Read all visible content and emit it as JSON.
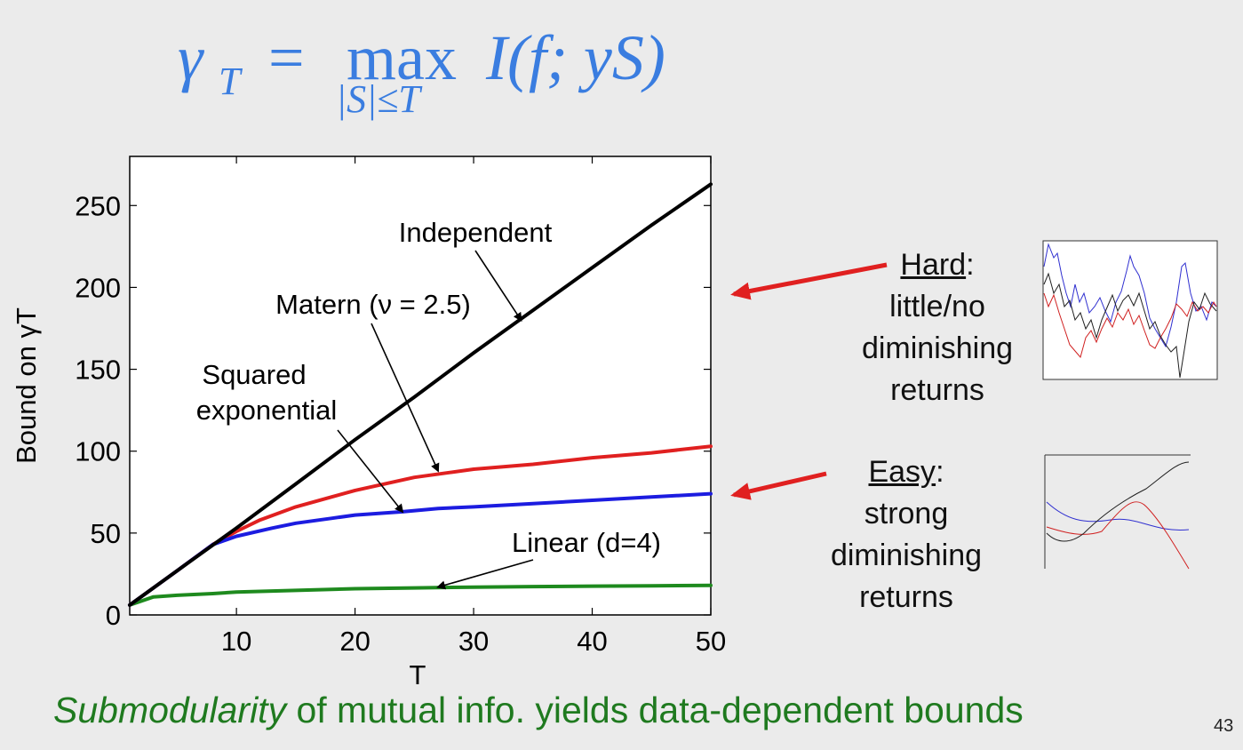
{
  "formula": {
    "gamma": "γ",
    "gamma_sub": "T",
    "equals": "=",
    "max": "max",
    "max_sub": "|S|≤T",
    "expression": "I(f; yS)"
  },
  "chart_data": {
    "type": "line",
    "xlabel": "T",
    "ylabel": "Bound on γT",
    "xlim": [
      1,
      50
    ],
    "ylim": [
      0,
      280
    ],
    "xticks": [
      10,
      20,
      30,
      40,
      50
    ],
    "yticks": [
      0,
      50,
      100,
      150,
      200,
      250
    ],
    "grid": false,
    "series": [
      {
        "name": "Independent",
        "color": "#000000",
        "x": [
          1,
          5,
          10,
          15,
          20,
          25,
          30,
          35,
          40,
          45,
          50
        ],
        "y": [
          6,
          27,
          53,
          80,
          107,
          133,
          160,
          186,
          212,
          238,
          263
        ]
      },
      {
        "name": "Matern (ν = 2.5)",
        "color": "#e02020",
        "x": [
          1,
          5,
          8,
          10,
          12,
          15,
          18,
          20,
          25,
          28,
          30,
          35,
          40,
          45,
          50
        ],
        "y": [
          6,
          27,
          43,
          51,
          58,
          66,
          72,
          76,
          84,
          87,
          89,
          92,
          96,
          99,
          103
        ]
      },
      {
        "name": "Squared exponential",
        "color": "#1c1ce0",
        "x": [
          1,
          5,
          8,
          10,
          13,
          15,
          18,
          20,
          24,
          27,
          30,
          35,
          40,
          45,
          50
        ],
        "y": [
          6,
          27,
          43,
          48,
          53,
          56,
          59,
          61,
          63,
          65,
          66,
          68,
          70,
          72,
          74
        ]
      },
      {
        "name": "Linear (d=4)",
        "color": "#1e8a1e",
        "x": [
          1,
          3,
          5,
          8,
          10,
          15,
          20,
          25,
          30,
          35,
          40,
          45,
          50
        ],
        "y": [
          6,
          11,
          12,
          13,
          14,
          15,
          16,
          16.5,
          17,
          17.3,
          17.6,
          17.8,
          18
        ]
      }
    ],
    "annotations": [
      {
        "text": "Independent",
        "points_to": {
          "x": 34,
          "y": 180
        }
      },
      {
        "text": "Matern (ν = 2.5)",
        "points_to": {
          "x": 27,
          "y": 88
        }
      },
      {
        "text": "Squared",
        "points_to": null
      },
      {
        "text": "exponential",
        "points_to": {
          "x": 24,
          "y": 63
        }
      },
      {
        "text": "Linear (d=4)",
        "points_to": {
          "x": 27,
          "y": 17
        }
      }
    ]
  },
  "side": {
    "hard_head": "Hard",
    "hard_colon": ":",
    "hard_lines": [
      "little/no",
      "diminishing",
      "returns"
    ],
    "easy_head": "Easy",
    "easy_colon": ":",
    "easy_lines": [
      "strong",
      "diminishing",
      "returns"
    ],
    "arrow_color": "#e02020"
  },
  "caption": {
    "italic": "Submodularity",
    "rest": " of mutual info. yields data-dependent bounds"
  },
  "page_number": "43"
}
